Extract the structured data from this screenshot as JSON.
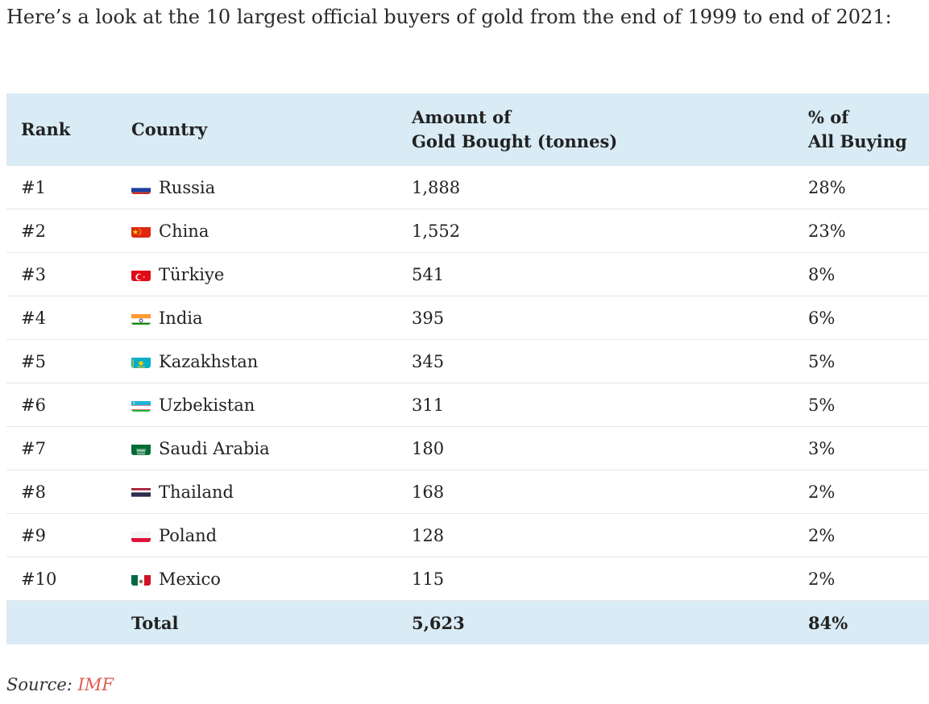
{
  "intro": "Here’s a look at the 10 largest official buyers of gold from the end of 1999 to end of 2021:",
  "table": {
    "headers": {
      "rank": "Rank",
      "country": "Country",
      "amount_line1": "Amount of",
      "amount_line2": "Gold Bought (tonnes)",
      "pct_line1": "% of",
      "pct_line2": "All Buying"
    },
    "rows": [
      {
        "rank": "#1",
        "country": "Russia",
        "flag": "russia-flag-icon",
        "amount": "1,888",
        "pct": "28%"
      },
      {
        "rank": "#2",
        "country": "China",
        "flag": "china-flag-icon",
        "amount": "1,552",
        "pct": "23%"
      },
      {
        "rank": "#3",
        "country": "Türkiye",
        "flag": "turkiye-flag-icon",
        "amount": "541",
        "pct": "8%"
      },
      {
        "rank": "#4",
        "country": "India",
        "flag": "india-flag-icon",
        "amount": "395",
        "pct": "6%"
      },
      {
        "rank": "#5",
        "country": "Kazakhstan",
        "flag": "kazakhstan-flag-icon",
        "amount": "345",
        "pct": "5%"
      },
      {
        "rank": "#6",
        "country": "Uzbekistan",
        "flag": "uzbekistan-flag-icon",
        "amount": "311",
        "pct": "5%"
      },
      {
        "rank": "#7",
        "country": "Saudi Arabia",
        "flag": "saudi-arabia-flag-icon",
        "amount": "180",
        "pct": "3%"
      },
      {
        "rank": "#8",
        "country": "Thailand",
        "flag": "thailand-flag-icon",
        "amount": "168",
        "pct": "2%"
      },
      {
        "rank": "#9",
        "country": "Poland",
        "flag": "poland-flag-icon",
        "amount": "128",
        "pct": "2%"
      },
      {
        "rank": "#10",
        "country": "Mexico",
        "flag": "mexico-flag-icon",
        "amount": "115",
        "pct": "2%"
      }
    ],
    "total": {
      "rank": "",
      "label": "Total",
      "amount": "5,623",
      "pct": "84%"
    }
  },
  "source": {
    "label": "Source:",
    "link_text": "IMF"
  },
  "colors": {
    "header_bg": "#d9ebf5",
    "link": "#e05a4f"
  }
}
